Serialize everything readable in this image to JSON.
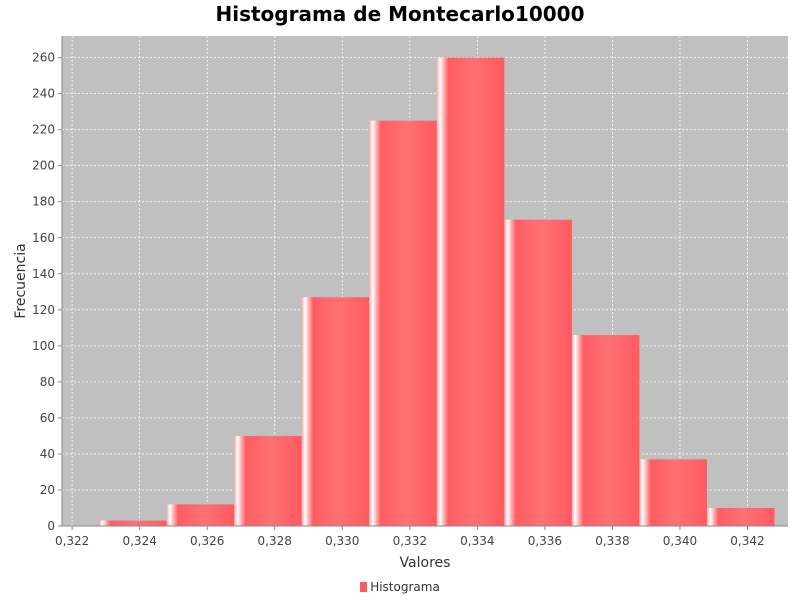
{
  "chart_data": {
    "type": "bar",
    "title": "Histograma de Montecarlo10000",
    "xlabel": "Valores",
    "ylabel": "Frecuencia",
    "xlim": [
      0.3217,
      0.3432
    ],
    "ylim": [
      0,
      272
    ],
    "xticks": [
      0.322,
      0.324,
      0.326,
      0.328,
      0.33,
      0.332,
      0.334,
      0.336,
      0.338,
      0.34,
      0.342
    ],
    "xtick_labels": [
      "0,322",
      "0,324",
      "0,326",
      "0,328",
      "0,330",
      "0,332",
      "0,334",
      "0,336",
      "0,338",
      "0,340",
      "0,342"
    ],
    "yticks": [
      0,
      20,
      40,
      60,
      80,
      100,
      120,
      140,
      160,
      180,
      200,
      220,
      240,
      260
    ],
    "bins": [
      {
        "start": 0.3228,
        "end": 0.3248,
        "value": 3
      },
      {
        "start": 0.3248,
        "end": 0.3268,
        "value": 12
      },
      {
        "start": 0.3268,
        "end": 0.3288,
        "value": 50
      },
      {
        "start": 0.3288,
        "end": 0.3308,
        "value": 127
      },
      {
        "start": 0.3308,
        "end": 0.3328,
        "value": 225
      },
      {
        "start": 0.3328,
        "end": 0.3348,
        "value": 260
      },
      {
        "start": 0.3348,
        "end": 0.3368,
        "value": 170
      },
      {
        "start": 0.3368,
        "end": 0.3388,
        "value": 106
      },
      {
        "start": 0.3388,
        "end": 0.3408,
        "value": 37
      },
      {
        "start": 0.3408,
        "end": 0.3428,
        "value": 10
      }
    ],
    "series": [
      {
        "name": "Histograma"
      }
    ],
    "legend_position": "bottom",
    "grid": true,
    "colors": {
      "bar": "#ff5a5f",
      "plot_bg": "#c0c0c0",
      "grid": "#ffffff"
    }
  }
}
